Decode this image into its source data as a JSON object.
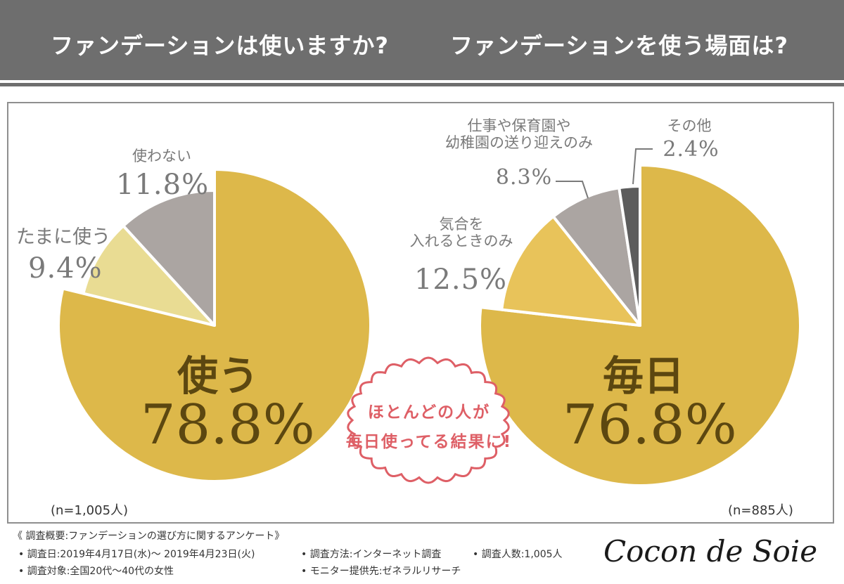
{
  "header": {
    "left_title": "ファンデーションは使いますか?",
    "right_title": "ファンデーションを使う場面は?"
  },
  "colors": {
    "header_bg": "#6e6e6e",
    "gold": "#ddb84a",
    "pale_yellow": "#e9dc93",
    "light_gold": "#e8c35a",
    "gray": "#aba5a2",
    "dark_gray": "#5c5c5c",
    "label_text": "#7a7a7a",
    "main_text": "#5c4710",
    "accent_pink": "#de5f66"
  },
  "chart_data": [
    {
      "type": "pie",
      "title": "ファンデーションは使いますか?",
      "n_label": "(n=1,005人)",
      "slices": [
        {
          "name": "使う",
          "value": 78.8,
          "value_label": "78.8%",
          "color": "#ddb84a"
        },
        {
          "name": "たまに使う",
          "value": 9.4,
          "value_label": "9.4%",
          "color": "#e9dc93"
        },
        {
          "name": "使わない",
          "value": 11.8,
          "value_label": "11.8%",
          "color": "#aba5a2"
        }
      ]
    },
    {
      "type": "pie",
      "title": "ファンデーションを使う場面は?",
      "n_label": "(n=885人)",
      "slices": [
        {
          "name": "毎日",
          "value": 76.8,
          "value_label": "76.8%",
          "color": "#ddb84a"
        },
        {
          "name": "気合を入れるときのみ",
          "name_lines": [
            "気合を",
            "入れるときのみ"
          ],
          "value": 12.5,
          "value_label": "12.5%",
          "color": "#e8c35a"
        },
        {
          "name": "仕事や保育園や幼稚園の送り迎えのみ",
          "name_lines": [
            "仕事や保育園や",
            "幼稚園の送り迎えのみ"
          ],
          "value": 8.3,
          "value_label": "8.3%",
          "color": "#aba5a2"
        },
        {
          "name": "その他",
          "value": 2.4,
          "value_label": "2.4%",
          "color": "#5c5c5c"
        }
      ]
    }
  ],
  "bubble": {
    "line1": "ほとんどの人が",
    "line2": "毎日使ってる結果に!"
  },
  "footer": {
    "summary": "《 調査概要:ファンデーションの選び方に関するアンケート》",
    "date": "• 調査日:2019年4月17日(水)〜 2019年4月23日(火)",
    "method": "• 調査方法:インターネット調査",
    "count": "• 調査人数:1,005人",
    "target": "• 調査対象:全国20代〜40代の女性",
    "provider": "• モニター提供先:ゼネラルリサーチ"
  },
  "logo": {
    "text": "Cocon de Soie"
  }
}
